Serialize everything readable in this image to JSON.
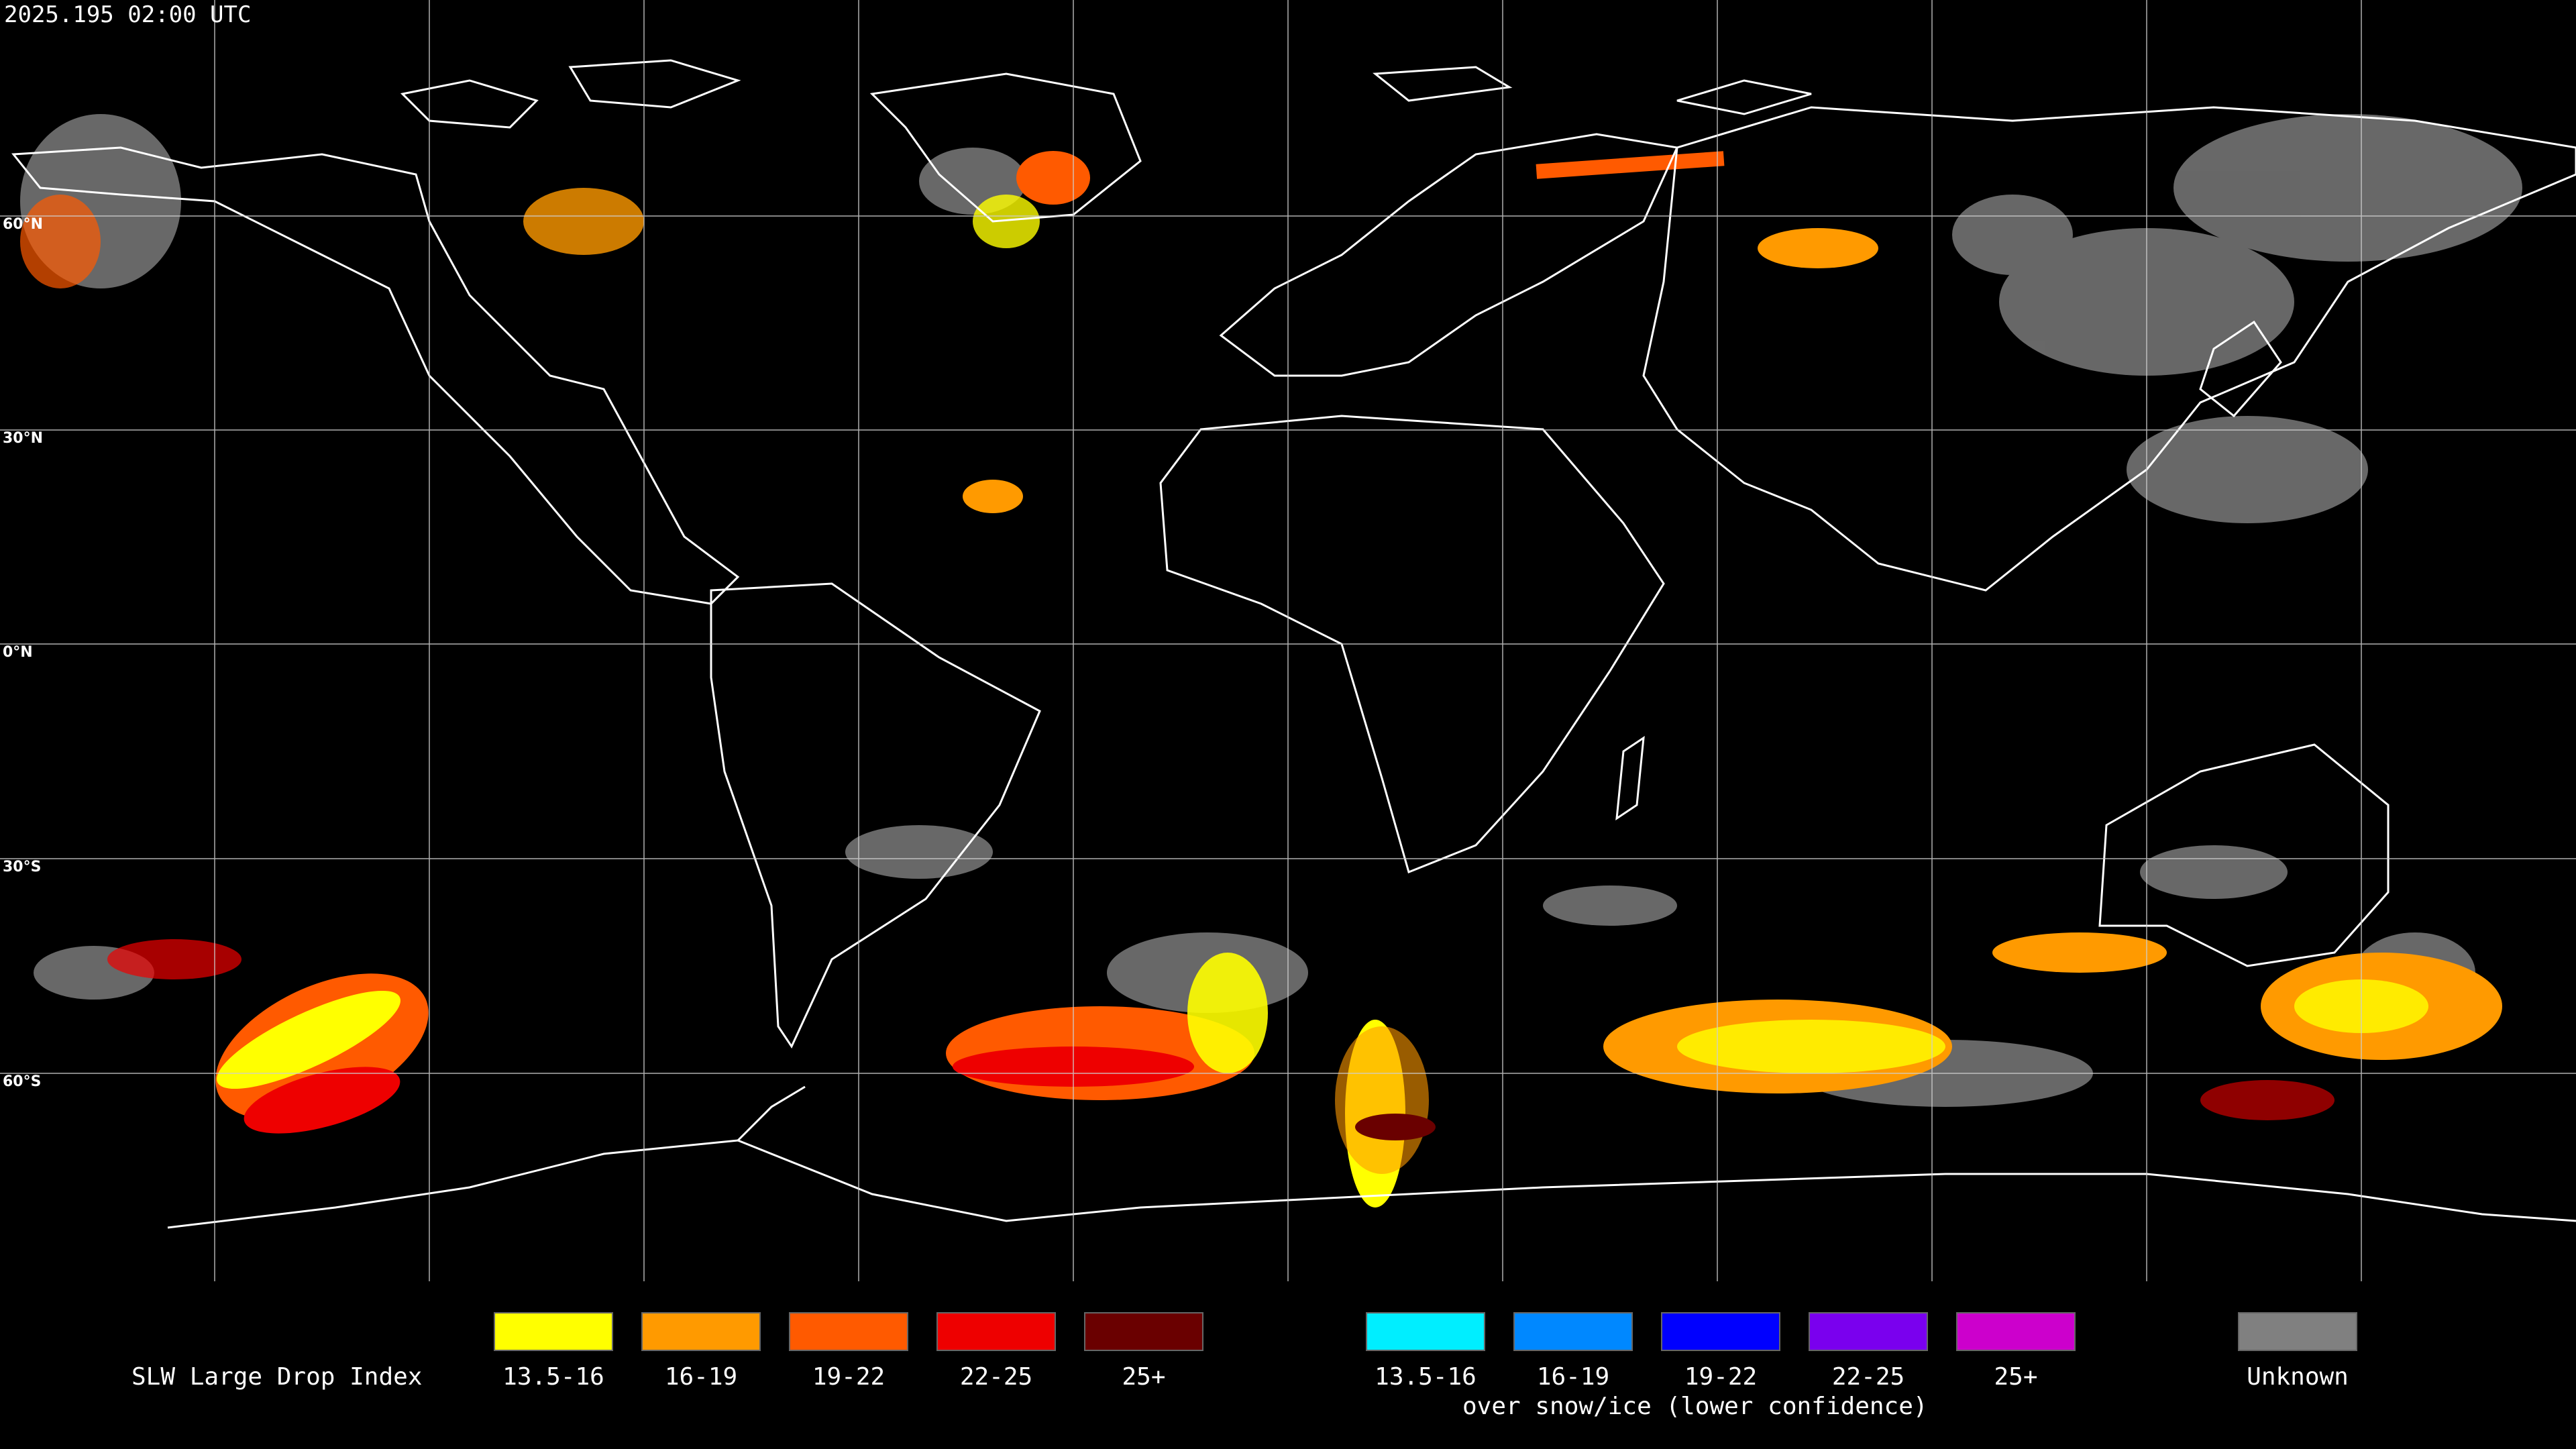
{
  "header": {
    "timestamp": "2025.195 02:00 UTC"
  },
  "map": {
    "lat_labels": [
      "60°N",
      "30°N",
      "0°N",
      "30°S",
      "60°S"
    ],
    "background": "#000000",
    "gridline_color": "#cfcfcf",
    "coastline_color": "#ffffff"
  },
  "legend": {
    "title": "SLW Large Drop Index",
    "standard": [
      {
        "label": "13.5-16",
        "color": "#ffff00"
      },
      {
        "label": "16-19",
        "color": "#ff9a00"
      },
      {
        "label": "19-22",
        "color": "#ff5a00"
      },
      {
        "label": "22-25",
        "color": "#ee0000"
      },
      {
        "label": "25+",
        "color": "#6a0000"
      }
    ],
    "snow_ice": [
      {
        "label": "13.5-16",
        "color": "#00eeff"
      },
      {
        "label": "16-19",
        "color": "#0088ff"
      },
      {
        "label": "19-22",
        "color": "#0000ff"
      },
      {
        "label": "22-25",
        "color": "#7a00ee"
      },
      {
        "label": "25+",
        "color": "#cc00cc"
      }
    ],
    "snow_ice_caption": "over snow/ice (lower confidence)",
    "unknown": {
      "label": "Unknown",
      "color": "#808080"
    }
  }
}
